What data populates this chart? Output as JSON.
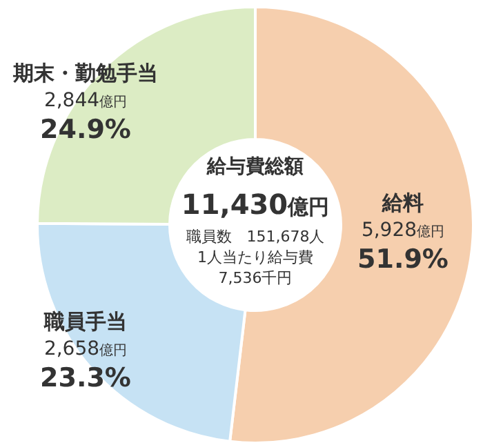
{
  "chart_data": {
    "type": "donut",
    "title": "給与費総額",
    "subtitle": "11,430億円",
    "categories": [
      "給料",
      "職員手当",
      "期末・勤勉手当"
    ],
    "values": [
      5928,
      2658,
      2844
    ],
    "colors": [
      "#f6cfae",
      "#c6e2f4",
      "#dcecc4"
    ],
    "value_labels": [
      "5,928億円",
      "2,658億円",
      "2,844億円"
    ],
    "annotations": [
      "51.9%",
      "23.3%",
      "24.9%",
      "職員数　151,678人",
      "1人当たり給与費",
      "7,536千円"
    ]
  }
}
